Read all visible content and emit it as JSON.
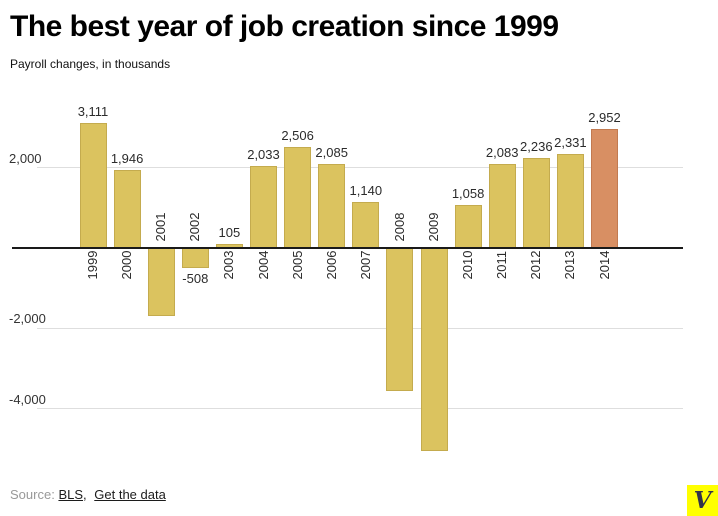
{
  "chart_data": {
    "type": "bar",
    "title": "The best year of job creation since 1999",
    "subtitle": "Payroll changes, in thousands",
    "unit": "thousands",
    "categories": [
      "1999",
      "2000",
      "2001",
      "2002",
      "2003",
      "2004",
      "2005",
      "2006",
      "2007",
      "2008",
      "2009",
      "2010",
      "2011",
      "2012",
      "2013",
      "2014"
    ],
    "values": [
      3111,
      1946,
      -1700,
      -508,
      105,
      2033,
      2506,
      2085,
      1140,
      -3550,
      -5050,
      1058,
      2083,
      2236,
      2331,
      2952
    ],
    "value_labels": [
      "3,111",
      "1,946",
      null,
      "-508",
      "105",
      "2,033",
      "2,506",
      "2,085",
      "1,140",
      null,
      null,
      "1,058",
      "2,083",
      "2,236",
      "2,331",
      "2,952"
    ],
    "y_ticks": [
      {
        "value": 2000,
        "label": "2,000"
      },
      {
        "value": -2000,
        "label": "-2,000"
      },
      {
        "value": -4000,
        "label": "-4,000"
      }
    ],
    "ylim": [
      -5300,
      3400
    ],
    "xlabel": "",
    "ylabel": "Payroll changes, in thousands",
    "grid": true,
    "legend": "none",
    "bar_color": "#dbc35f",
    "bar_border_color": "#c4ab4e",
    "highlight_index": 15,
    "highlight_color": "#d88f63",
    "highlight_border_color": "#c27a50",
    "axis_line_color": "#1a1a1a",
    "gridline_color": "#dedede",
    "label_color": "#2b2b2b"
  },
  "footer": {
    "source_label": "Source:",
    "bls_link": "BLS",
    "separator": ",",
    "get_data_link": "Get the data"
  },
  "logo": {
    "letter": "V",
    "bg_color": "#ffff00",
    "fg_color": "#32324b"
  }
}
